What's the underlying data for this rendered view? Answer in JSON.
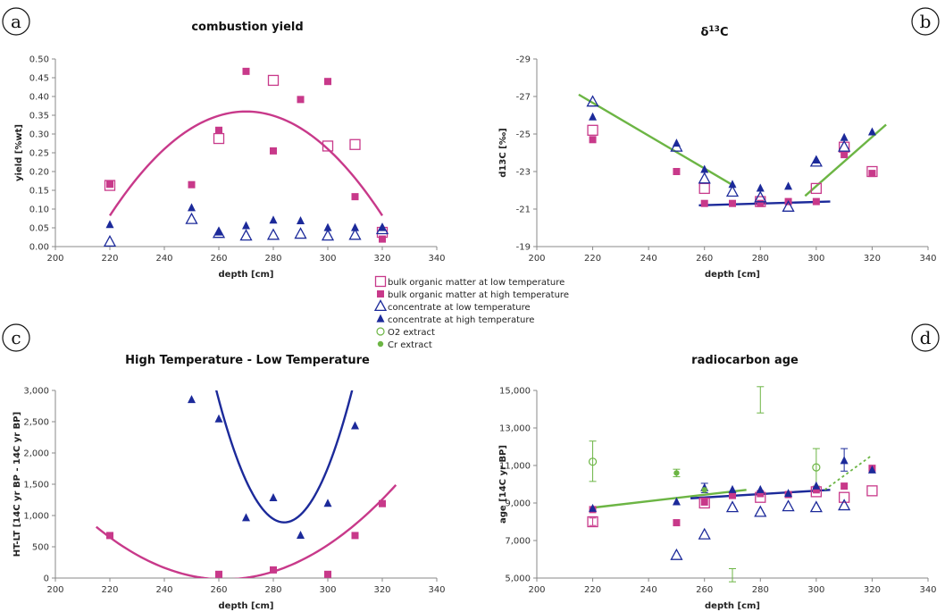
{
  "colors": {
    "pink": "#c8398a",
    "navy": "#1c2a9a",
    "green": "#6cb544"
  },
  "legend": [
    {
      "label": "bulk organic matter at low temperature",
      "marker": "square-open",
      "color": "#c8398a"
    },
    {
      "label": "bulk organic matter at high temperature",
      "marker": "square-filled",
      "color": "#c8398a"
    },
    {
      "label": "concentrate at low temperature",
      "marker": "triangle-open",
      "color": "#1c2a9a"
    },
    {
      "label": "concentrate at high temperature",
      "marker": "triangle-filled",
      "color": "#1c2a9a"
    },
    {
      "label": "O2 extract",
      "marker": "circle-open",
      "color": "#6cb544"
    },
    {
      "label": "Cr extract",
      "marker": "circle-filled",
      "color": "#6cb544"
    }
  ],
  "chart_data": [
    {
      "letter": "a",
      "type": "scatter",
      "title": "combustion yield",
      "title_sup": "",
      "xlabel": "depth [cm]",
      "ylabel": "yield [%wt]",
      "xlim": [
        200,
        340
      ],
      "ylim": [
        0,
        0.5
      ],
      "xticks": [
        200,
        220,
        240,
        260,
        280,
        300,
        320,
        340
      ],
      "yticks": [
        0,
        0.05,
        0.1,
        0.15,
        0.2,
        0.25,
        0.3,
        0.35,
        0.4,
        0.45,
        0.5
      ],
      "ytick_labels": [
        "0.00",
        "0.05",
        "0.10",
        "0.15",
        "0.20",
        "0.25",
        "0.30",
        "0.35",
        "0.40",
        "0.45",
        "0.50"
      ],
      "series": [
        {
          "name": "bulk organic matter at low temperature",
          "marker": "square-open",
          "color": "#c8398a",
          "points": [
            [
              220,
              0.163
            ],
            [
              260,
              0.288
            ],
            [
              280,
              0.443
            ],
            [
              300,
              0.268
            ],
            [
              310,
              0.272
            ],
            [
              320,
              0.038
            ]
          ]
        },
        {
          "name": "bulk organic matter at high temperature",
          "marker": "square-filled",
          "color": "#c8398a",
          "points": [
            [
              220,
              0.166
            ],
            [
              250,
              0.165
            ],
            [
              260,
              0.31
            ],
            [
              270,
              0.467
            ],
            [
              280,
              0.255
            ],
            [
              290,
              0.392
            ],
            [
              300,
              0.44
            ],
            [
              310,
              0.133
            ],
            [
              320,
              0.02
            ]
          ]
        },
        {
          "name": "concentrate at low temperature",
          "marker": "triangle-open",
          "color": "#1c2a9a",
          "points": [
            [
              220,
              0.012
            ],
            [
              250,
              0.072
            ],
            [
              260,
              0.035
            ],
            [
              270,
              0.028
            ],
            [
              280,
              0.03
            ],
            [
              290,
              0.033
            ],
            [
              300,
              0.028
            ],
            [
              310,
              0.03
            ],
            [
              320,
              0.045
            ]
          ]
        },
        {
          "name": "concentrate at high temperature",
          "marker": "triangle-filled",
          "color": "#1c2a9a",
          "points": [
            [
              220,
              0.058
            ],
            [
              250,
              0.103
            ],
            [
              260,
              0.038
            ],
            [
              270,
              0.055
            ],
            [
              280,
              0.07
            ],
            [
              290,
              0.068
            ],
            [
              300,
              0.05
            ],
            [
              310,
              0.05
            ],
            [
              320,
              0.05
            ]
          ]
        }
      ],
      "curves": [
        {
          "color": "#c8398a",
          "kind": "quadratic",
          "coef": [
            -0.000111,
            270,
            0.36
          ],
          "xrange": [
            220,
            320
          ]
        }
      ],
      "errorbars": []
    },
    {
      "letter": "b",
      "type": "scatter",
      "title": "δ",
      "title_sup": "13",
      "title_suffix": "C",
      "xlabel": "depth [cm]",
      "ylabel": "d13C [‰]",
      "xlim": [
        200,
        340
      ],
      "ylim": [
        -29,
        -19
      ],
      "y_reversed": true,
      "xticks": [
        200,
        220,
        240,
        260,
        280,
        300,
        320,
        340
      ],
      "yticks": [
        -29,
        -27,
        -25,
        -23,
        -21,
        -19
      ],
      "ytick_labels": [
        "-29",
        "-27",
        "-25",
        "-23",
        "-21",
        "-19"
      ],
      "series": [
        {
          "name": "bulk organic matter at low temperature",
          "marker": "square-open",
          "color": "#c8398a",
          "points": [
            [
              220,
              -25.2
            ],
            [
              260,
              -22.1
            ],
            [
              280,
              -21.4
            ],
            [
              300,
              -22.1
            ],
            [
              310,
              -24.3
            ],
            [
              320,
              -23.0
            ]
          ]
        },
        {
          "name": "bulk organic matter at high temperature",
          "marker": "square-filled",
          "color": "#c8398a",
          "points": [
            [
              220,
              -24.7
            ],
            [
              250,
              -23.0
            ],
            [
              260,
              -21.3
            ],
            [
              270,
              -21.3
            ],
            [
              280,
              -21.3
            ],
            [
              290,
              -21.4
            ],
            [
              300,
              -21.4
            ],
            [
              310,
              -23.9
            ],
            [
              320,
              -22.9
            ]
          ]
        },
        {
          "name": "concentrate at low temperature",
          "marker": "triangle-open",
          "color": "#1c2a9a",
          "points": [
            [
              220,
              -26.7
            ],
            [
              250,
              -24.3
            ],
            [
              260,
              -22.6
            ],
            [
              270,
              -21.9
            ],
            [
              280,
              -21.6
            ],
            [
              290,
              -21.1
            ],
            [
              300,
              -23.5
            ],
            [
              310,
              -24.3
            ]
          ]
        },
        {
          "name": "concentrate at high temperature",
          "marker": "triangle-filled",
          "color": "#1c2a9a",
          "points": [
            [
              220,
              -25.9
            ],
            [
              250,
              -24.5
            ],
            [
              260,
              -23.1
            ],
            [
              270,
              -22.3
            ],
            [
              280,
              -22.1
            ],
            [
              290,
              -22.2
            ],
            [
              300,
              -23.6
            ],
            [
              310,
              -24.8
            ],
            [
              320,
              -25.1
            ]
          ]
        }
      ],
      "curves": [
        {
          "color": "#6cb544",
          "kind": "line",
          "points": [
            [
              215,
              -27.1
            ],
            [
              271,
              -22.2
            ]
          ]
        },
        {
          "color": "#6cb544",
          "kind": "line",
          "points": [
            [
              296,
              -21.7
            ],
            [
              325,
              -25.5
            ]
          ]
        },
        {
          "color": "#1c2a9a",
          "kind": "line",
          "points": [
            [
              258,
              -21.2
            ],
            [
              305,
              -21.4
            ]
          ]
        }
      ],
      "errorbars": []
    },
    {
      "letter": "c",
      "type": "scatter",
      "title": "High Temperature - Low Temperature",
      "title_sup": "",
      "xlabel": "depth [cm]",
      "ylabel": "HT-LT [14C yr BP - 14C yr BP]",
      "xlim": [
        200,
        340
      ],
      "ylim": [
        0,
        3000
      ],
      "xticks": [
        200,
        220,
        240,
        260,
        280,
        300,
        320,
        340
      ],
      "yticks": [
        0,
        500,
        1000,
        1500,
        2000,
        2500,
        3000
      ],
      "ytick_labels": [
        "0",
        "500",
        "1,000",
        "1,500",
        "2,000",
        "2,500",
        "3,000"
      ],
      "series": [
        {
          "name": "bulk organic matter at high temperature",
          "marker": "square-filled",
          "color": "#c8398a",
          "points": [
            [
              220,
              680
            ],
            [
              260,
              60
            ],
            [
              280,
              130
            ],
            [
              300,
              60
            ],
            [
              310,
              680
            ],
            [
              320,
              1190
            ]
          ]
        },
        {
          "name": "concentrate at high temperature",
          "marker": "triangle-filled",
          "color": "#1c2a9a",
          "points": [
            [
              250,
              2850
            ],
            [
              260,
              2540
            ],
            [
              270,
              960
            ],
            [
              280,
              1280
            ],
            [
              290,
              680
            ],
            [
              300,
              1190
            ],
            [
              310,
              2430
            ]
          ]
        }
      ],
      "curves": [
        {
          "color": "#1c2a9a",
          "kind": "quadratic",
          "coef": [
            3.4,
            284,
            890
          ],
          "xrange": [
            248,
            318
          ]
        },
        {
          "color": "#c8398a",
          "kind": "quadratic",
          "coef": [
            0.38,
            262,
            -20
          ],
          "xrange": [
            215,
            325
          ]
        }
      ],
      "errorbars": []
    },
    {
      "letter": "d",
      "type": "scatter",
      "title": "radiocarbon age",
      "title_sup": "",
      "xlabel": "depth [cm]",
      "ylabel": "age [14C yr BP]",
      "xlim": [
        200,
        340
      ],
      "ylim": [
        5000,
        15000
      ],
      "xticks": [
        200,
        220,
        240,
        260,
        280,
        300,
        320,
        340
      ],
      "yticks": [
        5000,
        7000,
        9000,
        11000,
        13000,
        15000
      ],
      "ytick_labels": [
        "5,000",
        "7,000",
        "9,000",
        "11,000",
        "13,000",
        "15,000"
      ],
      "series": [
        {
          "name": "bulk organic matter at low temperature",
          "marker": "square-open",
          "color": "#c8398a",
          "points": [
            [
              220,
              8000
            ],
            [
              260,
              9000
            ],
            [
              280,
              9300
            ],
            [
              300,
              9600
            ],
            [
              310,
              9300
            ],
            [
              320,
              9650
            ]
          ]
        },
        {
          "name": "bulk organic matter at high temperature",
          "marker": "square-filled",
          "color": "#c8398a",
          "points": [
            [
              220,
              8650
            ],
            [
              250,
              7950
            ],
            [
              260,
              9050
            ],
            [
              270,
              9400
            ],
            [
              280,
              9500
            ],
            [
              290,
              9450
            ],
            [
              300,
              9700
            ],
            [
              310,
              9900
            ],
            [
              320,
              10850
            ]
          ]
        },
        {
          "name": "concentrate at low temperature",
          "marker": "triangle-open",
          "color": "#1c2a9a",
          "points": [
            [
              250,
              6200
            ],
            [
              260,
              7300
            ],
            [
              270,
              8750
            ],
            [
              280,
              8500
            ],
            [
              290,
              8800
            ],
            [
              300,
              8750
            ],
            [
              310,
              8850
            ]
          ]
        },
        {
          "name": "concentrate at high temperature",
          "marker": "triangle-filled",
          "color": "#1c2a9a",
          "points": [
            [
              220,
              8700
            ],
            [
              250,
              9050
            ],
            [
              260,
              9800
            ],
            [
              270,
              9700
            ],
            [
              280,
              9700
            ],
            [
              290,
              9500
            ],
            [
              300,
              9900
            ],
            [
              310,
              11250
            ],
            [
              320,
              10750
            ]
          ]
        },
        {
          "name": "O2 extract",
          "marker": "circle-open",
          "color": "#6cb544",
          "points": [
            [
              220,
              11200
            ],
            [
              300,
              10900
            ]
          ]
        },
        {
          "name": "Cr extract",
          "marker": "circle-filled",
          "color": "#6cb544",
          "points": [
            [
              250,
              10600
            ],
            [
              260,
              9700
            ]
          ]
        }
      ],
      "curves": [
        {
          "color": "#6cb544",
          "kind": "line",
          "points": [
            [
              220,
              8750
            ],
            [
              275,
              9700
            ]
          ]
        },
        {
          "color": "#1c2a9a",
          "kind": "line",
          "points": [
            [
              255,
              9250
            ],
            [
              305,
              9700
            ]
          ]
        },
        {
          "color": "#6cb544",
          "kind": "line",
          "dashed": true,
          "points": [
            [
              303,
              9700
            ],
            [
              320,
              11550
            ]
          ]
        }
      ],
      "errorbars": [
        {
          "x": 220,
          "lo": 10150,
          "hi": 12300,
          "color": "#6cb544"
        },
        {
          "x": 300,
          "lo": 9900,
          "hi": 11900,
          "color": "#6cb544"
        },
        {
          "x": 280,
          "lo": 13800,
          "hi": 15200,
          "color": "#6cb544"
        },
        {
          "x": 270,
          "lo": 4800,
          "hi": 5500,
          "color": "#6cb544"
        },
        {
          "x": 250,
          "lo": 10400,
          "hi": 10800,
          "color": "#6cb544"
        },
        {
          "x": 310,
          "lo": 10700,
          "hi": 11900,
          "color": "#1c2a9a"
        },
        {
          "x": 260,
          "lo": 9550,
          "hi": 10050,
          "color": "#1c2a9a"
        },
        {
          "x": 220,
          "lo": 7800,
          "hi": 8200,
          "color": "#c8398a"
        }
      ]
    }
  ]
}
